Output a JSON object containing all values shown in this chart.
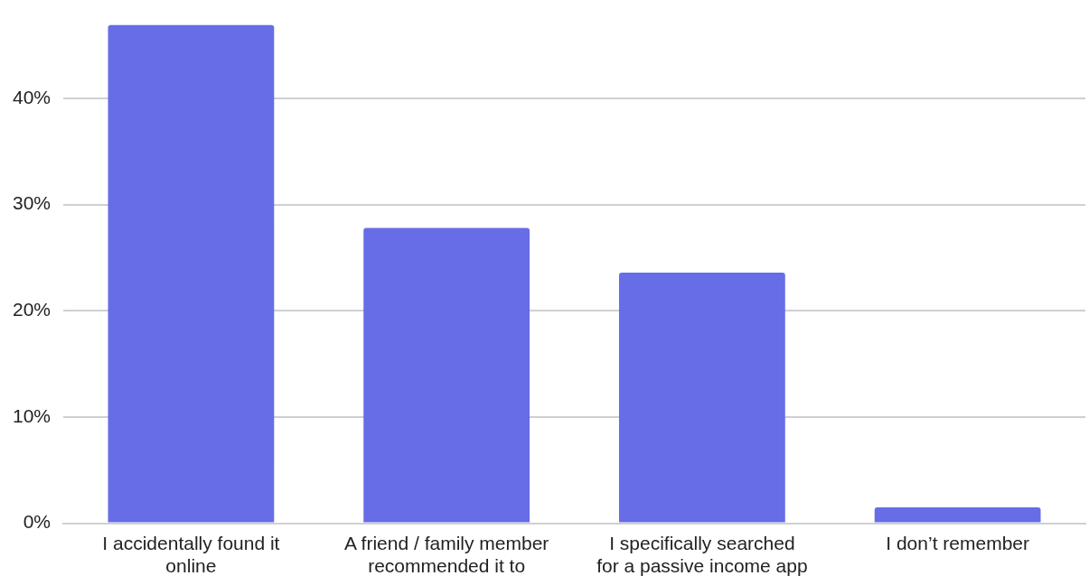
{
  "chart_data": {
    "type": "bar",
    "categories": [
      "I accidentally found it online",
      "A friend / family member recommended it to",
      "I specifically searched for a passive income app",
      "I don’t remember"
    ],
    "values": [
      46.9,
      27.8,
      23.6,
      1.5
    ],
    "color": "#676ce7",
    "ylim": [
      0,
      47
    ],
    "yticks": [
      {
        "value": 0,
        "label": "0%"
      },
      {
        "value": 10,
        "label": "10%"
      },
      {
        "value": 20,
        "label": "20%"
      },
      {
        "value": 30,
        "label": "30%"
      },
      {
        "value": 40,
        "label": "40%"
      }
    ],
    "grid": "y"
  }
}
